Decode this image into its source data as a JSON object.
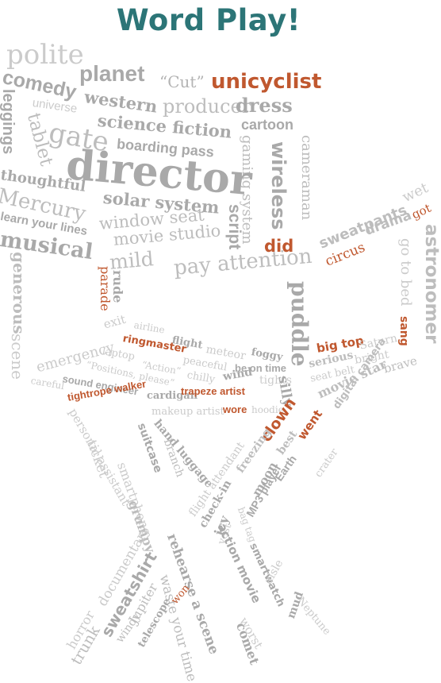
{
  "title": "Word Play!",
  "colors": {
    "title": "#2c7577",
    "highlight": "#c0582f",
    "grey_light": "#cbcbcb",
    "grey_mid": "#bdbdbd",
    "grey_dark": "#a9a9a9"
  },
  "words": [
    "polite",
    "planet",
    "“Cut”",
    "unicyclist",
    "comedy",
    "western",
    "producer",
    "dress",
    "leggings",
    "universe",
    "tablet",
    "gate",
    "science fiction",
    "cartoon",
    "boarding pass",
    "gaming system",
    "wireless",
    "cameraman",
    "director",
    "thoughtful",
    "solar system",
    "Mercury",
    "window seat",
    "learn your lines",
    "script",
    "musical",
    "movie studio",
    "mild",
    "pay attention",
    "did",
    "sweatpants",
    "wet",
    "got",
    "circus",
    "drama",
    "go to bed",
    "astronomer",
    "generous",
    "scene",
    "parade",
    "rude",
    "puddle",
    "sang",
    "exit",
    "airline",
    "emergency",
    "flight",
    "ringmaster",
    "meteor",
    "foggy",
    "big top",
    "Saturn",
    "laptop",
    "“Action”",
    "peaceful",
    "be on time",
    "serious",
    "bright",
    "“Positions, please”",
    "chilly",
    "wind",
    "tights",
    "seat belt",
    "brave",
    "sound engineer",
    "careful",
    "cardigan",
    "trapeze artist",
    "silly",
    "movie star",
    "tightrope walker",
    "makeup artist",
    "wore",
    "hoodie",
    "digital camera",
    "personal assistant",
    "hand luggage",
    "suitcase",
    "branch",
    "clown",
    "went",
    "best",
    "freezing",
    "crater",
    "Earth",
    "MP3 player",
    "moon",
    "flight attendant",
    "check-in",
    "ticket",
    "smartphone",
    "grumpy",
    "icy",
    "bag tag",
    "vest",
    "action movie",
    "smartwatch",
    "rehearse a scene",
    "aisle",
    "Neptune",
    "mud",
    "waste your time",
    "worst",
    "comet",
    "documentary",
    "horror",
    "sweatshirt",
    "trunk",
    "Jupiter",
    "windy",
    "won",
    "telescope"
  ]
}
